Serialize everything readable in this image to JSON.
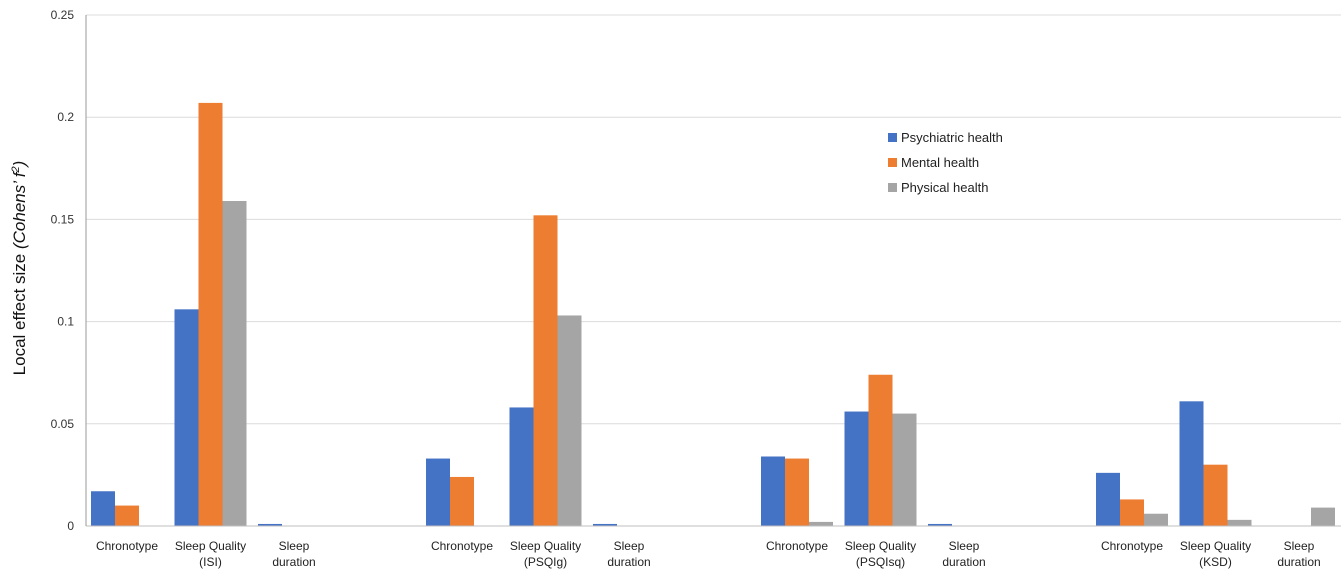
{
  "chart_data": {
    "type": "bar",
    "ylabel_main": "Local effect size ",
    "ylabel_italic": "(Cohens’ f",
    "ylabel_sup": "2",
    "ylabel_close": ")",
    "ylim": [
      0,
      0.25
    ],
    "yticks": [
      "0",
      "0.05",
      "0.1",
      "0.15",
      "0.2",
      "0.25"
    ],
    "yticks_values": [
      0,
      0.05,
      0.1,
      0.15,
      0.2,
      0.25
    ],
    "grid": true,
    "legend_position": "top-right",
    "groups": [
      {
        "categories": [
          [
            "Chronotype"
          ],
          [
            "Sleep Quality",
            "(ISI)"
          ],
          [
            "Sleep",
            "duration"
          ]
        ]
      },
      {
        "categories": [
          [
            "Chronotype"
          ],
          [
            "Sleep Quality",
            "(PSQIg)"
          ],
          [
            "Sleep",
            "duration"
          ]
        ]
      },
      {
        "categories": [
          [
            "Chronotype"
          ],
          [
            "Sleep Quality",
            "(PSQIsq)"
          ],
          [
            "Sleep",
            "duration"
          ]
        ]
      },
      {
        "categories": [
          [
            "Chronotype"
          ],
          [
            "Sleep Quality",
            "(KSD)"
          ],
          [
            "Sleep",
            "duration"
          ]
        ]
      }
    ],
    "series": [
      {
        "name": "Psychiatric health",
        "color": "#4472c4",
        "values": [
          0.017,
          0.106,
          0.001,
          0.033,
          0.058,
          0.001,
          0.034,
          0.056,
          0.001,
          0.026,
          0.061,
          0.0
        ]
      },
      {
        "name": "Mental health",
        "color": "#ed7d31",
        "values": [
          0.01,
          0.207,
          0.0,
          0.024,
          0.152,
          0.0,
          0.033,
          0.074,
          0.0,
          0.013,
          0.03,
          0.0
        ]
      },
      {
        "name": "Physical health",
        "color": "#a5a5a5",
        "values": [
          0.0,
          0.159,
          0.0,
          0.0,
          0.103,
          0.0,
          0.002,
          0.055,
          0.0,
          0.006,
          0.003,
          0.009
        ]
      }
    ]
  }
}
